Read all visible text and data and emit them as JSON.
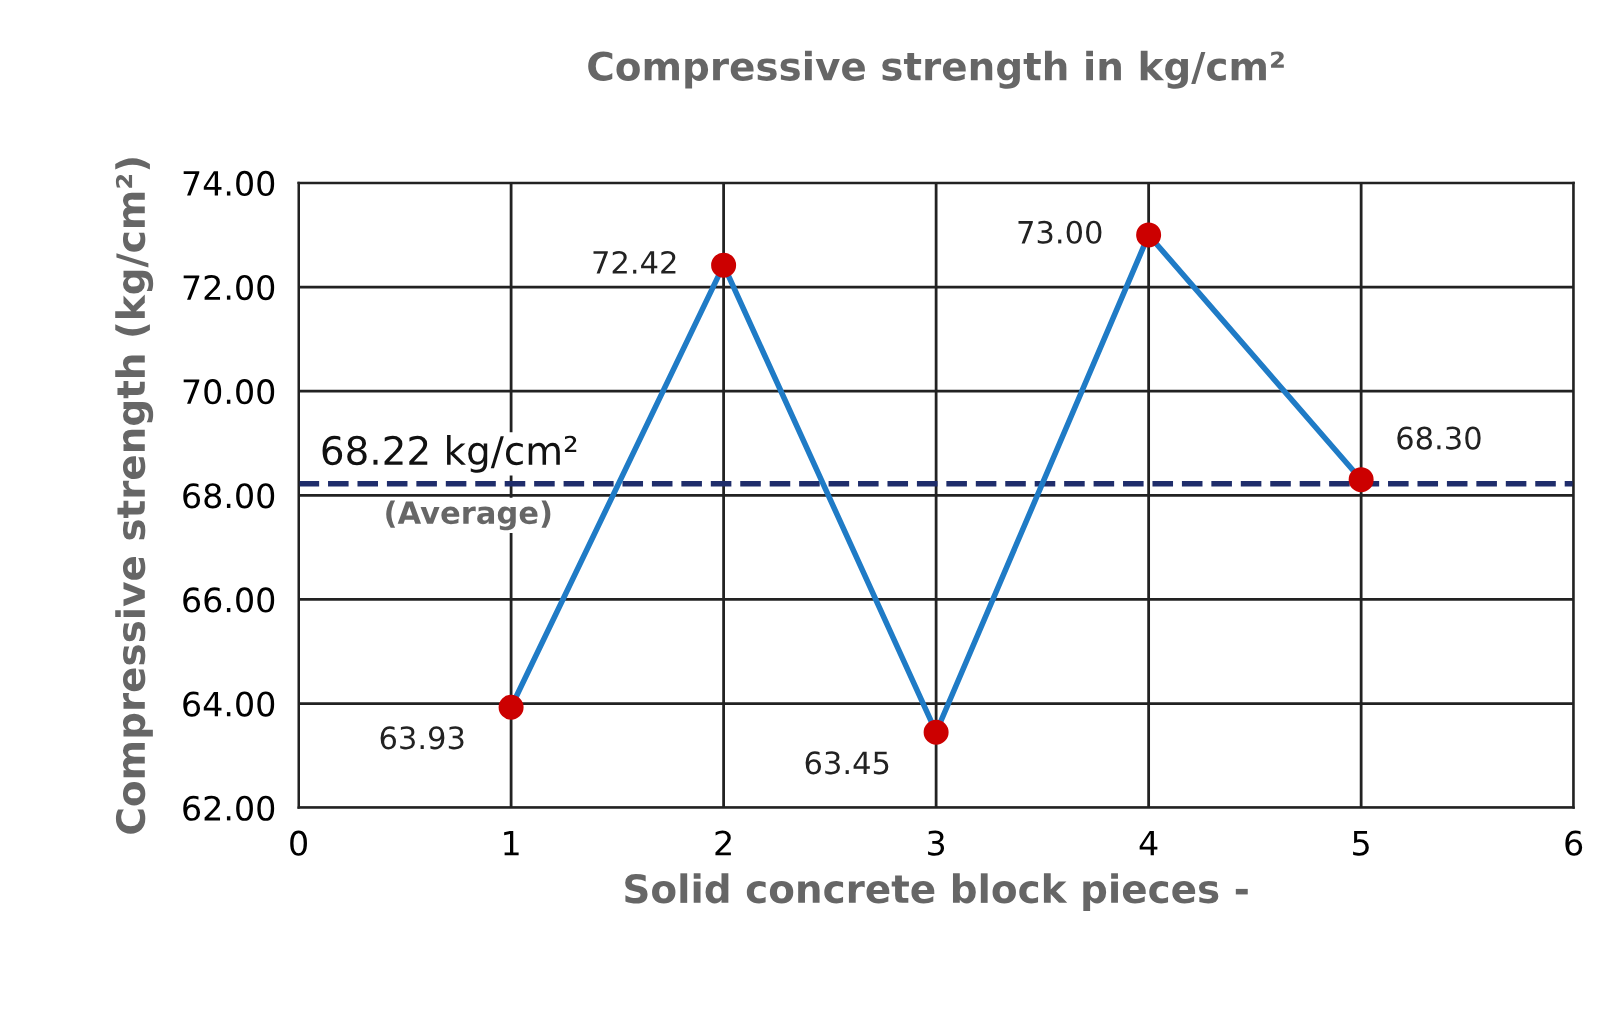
{
  "chart_data": {
    "type": "line",
    "title": "Compressive strength in kg/cm²",
    "xlabel": "Solid concrete block pieces -",
    "ylabel": "Compressive strength (kg/cm²)",
    "x": [
      1,
      2,
      3,
      4,
      5
    ],
    "series": [
      {
        "color": "#1f7bc6",
        "values": [
          63.93,
          72.42,
          63.45,
          73.0,
          68.3
        ],
        "value_labels": [
          "63.93",
          "72.42",
          "63.45",
          "73.00",
          "68.30"
        ],
        "colors": [
          "#cc0000",
          "#cc0000",
          "#cc0000",
          "#cc0000",
          "#cc0000"
        ]
      }
    ],
    "marker": "circle",
    "line_style": "solid",
    "grid": true,
    "legend": false,
    "xlim": [
      0,
      6
    ],
    "xticks": [
      0,
      1,
      2,
      3,
      4,
      5,
      6
    ],
    "ylim": [
      62,
      74
    ],
    "yticks": [
      {
        "value": 62,
        "label": "62.00"
      },
      {
        "value": 64,
        "label": "64.00"
      },
      {
        "value": 66,
        "label": "66.00"
      },
      {
        "value": 68,
        "label": "68.00"
      },
      {
        "value": 70,
        "label": "70.00"
      },
      {
        "value": 72,
        "label": "72.00"
      },
      {
        "value": 74,
        "label": "74.00"
      }
    ],
    "ref_lines": [
      {
        "axis": "y",
        "value": 68.22,
        "label": "68.22 kg/cm²",
        "color": "#1f2d6b",
        "line_style": "dashed"
      }
    ],
    "annotations": [
      "(Average)"
    ]
  }
}
